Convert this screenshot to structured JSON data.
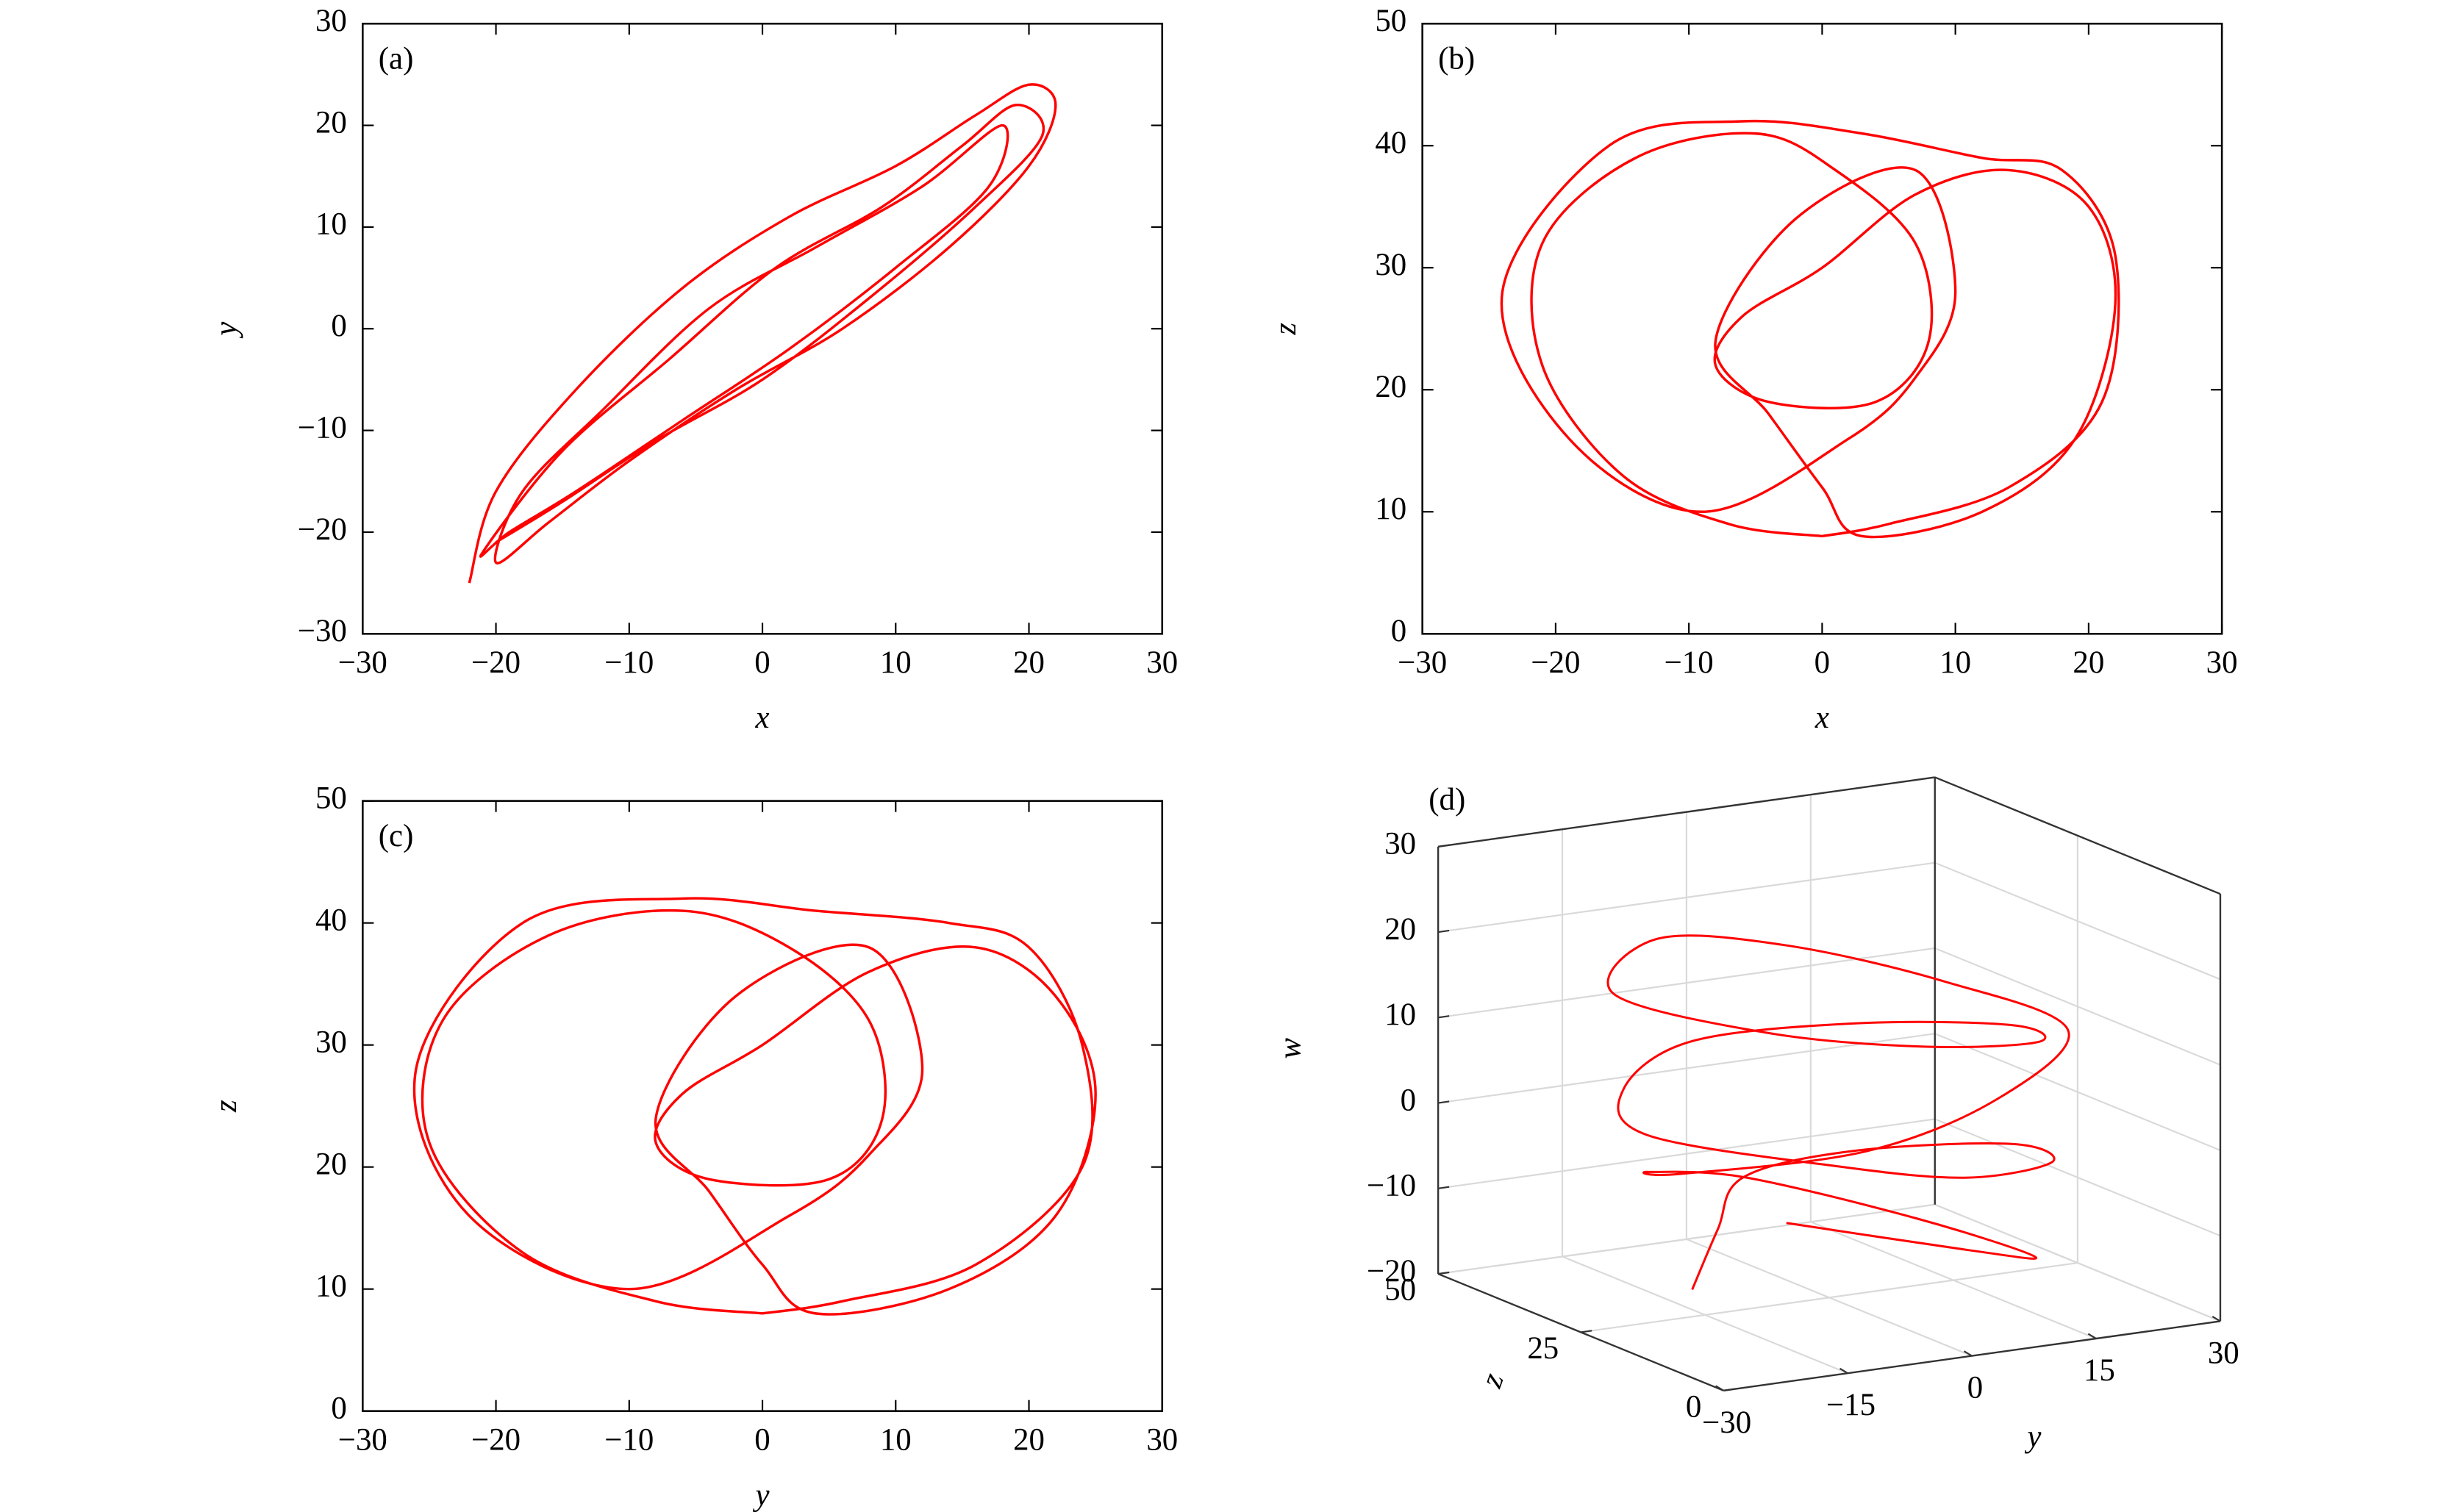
{
  "chart_data": [
    {
      "type": "line",
      "label": "(a)",
      "xlabel": "x",
      "ylabel": "y",
      "xlim": [
        -30,
        30
      ],
      "ylim": [
        -30,
        30
      ],
      "xticks": [
        {
          "value": -30,
          "label": "−30"
        },
        {
          "value": -20,
          "label": "−20"
        },
        {
          "value": -10,
          "label": "−10"
        },
        0,
        10,
        20,
        30
      ],
      "yticks": [
        {
          "value": -30,
          "label": "−30"
        },
        {
          "value": -20,
          "label": "−20"
        },
        {
          "value": -10,
          "label": "−10"
        },
        0,
        10,
        20,
        30
      ],
      "series": [
        {
          "color": "#ff0000",
          "x": [
            -22,
            -20,
            -14,
            -6,
            2,
            10,
            16,
            20,
            22,
            20,
            14,
            6,
            -2,
            -10,
            -16,
            -20,
            -18,
            -12,
            -4,
            4,
            12,
            18,
            17,
            10,
            2,
            -6,
            -14,
            -19,
            -21,
            -15,
            -7,
            1,
            9,
            15,
            19,
            21,
            16,
            8,
            0,
            -8,
            -15,
            -20
          ],
          "values": [
            -25,
            -16,
            -6,
            4,
            11,
            16,
            21,
            24,
            22,
            16,
            8,
            0,
            -6,
            -13,
            -19,
            -23,
            -16,
            -8,
            2,
            8,
            14,
            20,
            14,
            6,
            -2,
            -9,
            -16,
            -20,
            -22,
            -12,
            -3,
            6,
            12,
            18,
            22,
            19,
            12,
            3,
            -5,
            -11,
            -17,
            -21
          ]
        }
      ]
    },
    {
      "type": "line",
      "label": "(b)",
      "xlabel": "x",
      "ylabel": "z",
      "xlim": [
        -30,
        30
      ],
      "ylim": [
        0,
        50
      ],
      "xticks": [
        {
          "value": -30,
          "label": "−30"
        },
        {
          "value": -20,
          "label": "−20"
        },
        {
          "value": -10,
          "label": "−10"
        },
        0,
        10,
        20,
        30
      ],
      "yticks": [
        0,
        10,
        20,
        30,
        40,
        50
      ],
      "series": [
        {
          "color": "#ff0000",
          "x": [
            0,
            -7,
            -15,
            -21,
            -21,
            -14,
            -5,
            1,
            7,
            8,
            4,
            -4,
            -8,
            -6,
            0,
            7,
            14,
            20,
            22,
            19,
            12,
            3,
            0,
            -4,
            -8,
            -2,
            7,
            10,
            7,
            2,
            -9,
            -19,
            -24,
            -16,
            -6,
            3,
            12,
            18,
            22,
            21,
            14,
            5,
            0
          ],
          "values": [
            8,
            9,
            13,
            22,
            32,
            39,
            41,
            38,
            32,
            24,
            19,
            19,
            22,
            26,
            30,
            36,
            38,
            35,
            27,
            16,
            10,
            8,
            12,
            18,
            24,
            34,
            38,
            28,
            21,
            16,
            10,
            16,
            28,
            40,
            42,
            41,
            39,
            38,
            31,
            19,
            12,
            9,
            8
          ]
        }
      ]
    },
    {
      "type": "line",
      "label": "(c)",
      "xlabel": "y",
      "ylabel": "z",
      "xlim": [
        -30,
        30
      ],
      "ylim": [
        0,
        50
      ],
      "xticks": [
        {
          "value": -30,
          "label": "−30"
        },
        {
          "value": -20,
          "label": "−20"
        },
        {
          "value": -10,
          "label": "−10"
        },
        0,
        10,
        20,
        30
      ],
      "yticks": [
        0,
        10,
        20,
        30,
        40,
        50
      ],
      "series": [
        {
          "color": "#ff0000",
          "x": [
            0,
            -8,
            -18,
            -25,
            -24,
            -16,
            -6,
            2,
            8,
            9,
            5,
            -4,
            -8,
            -6,
            0,
            8,
            16,
            22,
            25,
            22,
            14,
            4,
            0,
            -4,
            -8,
            -2,
            8,
            12,
            8,
            2,
            -10,
            -22,
            -26,
            -18,
            -6,
            4,
            14,
            20,
            24,
            24,
            16,
            6,
            0
          ],
          "values": [
            8,
            9,
            13,
            22,
            32,
            39,
            41,
            38,
            32,
            24,
            19,
            19,
            22,
            26,
            30,
            36,
            38,
            34,
            26,
            16,
            10,
            8,
            12,
            18,
            24,
            34,
            38,
            28,
            21,
            16,
            10,
            16,
            28,
            40,
            42,
            41,
            40,
            38,
            30,
            20,
            12,
            9,
            8
          ]
        }
      ]
    },
    {
      "type": "line3d",
      "label": "(d)",
      "xlabel": "y",
      "ylabel": "z",
      "zlabel": "w",
      "xlim": [
        -30,
        30
      ],
      "ylim": [
        0,
        50
      ],
      "zlim": [
        -20,
        30
      ],
      "xticks": [
        {
          "value": -30,
          "label": "−30"
        },
        {
          "value": -15,
          "label": "−15"
        },
        0,
        15,
        30
      ],
      "yticks": [
        0,
        25,
        50
      ],
      "zticks": [
        {
          "value": -20,
          "label": "−20"
        },
        {
          "value": -10,
          "label": "−10"
        },
        0,
        10,
        20,
        30
      ],
      "series": [
        {
          "color": "#ff0000",
          "x": [
            -20,
            -10,
            0,
            12,
            22,
            18,
            5,
            -8,
            -22,
            -18,
            -5,
            10,
            20,
            15,
            0,
            -15,
            -24,
            -12,
            2,
            16,
            24,
            10,
            -6,
            -20,
            -15,
            0,
            14,
            20,
            8,
            -10
          ],
          "y": [
            20,
            30,
            40,
            38,
            25,
            12,
            8,
            12,
            25,
            35,
            42,
            35,
            22,
            10,
            8,
            14,
            28,
            38,
            36,
            28,
            18,
            10,
            10,
            22,
            35,
            40,
            30,
            18,
            12,
            18
          ],
          "values": [
            -15,
            -12,
            -10,
            -8,
            -5,
            -3,
            -2,
            0,
            2,
            4,
            6,
            8,
            10,
            12,
            14,
            16,
            18,
            20,
            18,
            14,
            10,
            6,
            2,
            -2,
            -6,
            -10,
            -14,
            -16,
            -12,
            -8
          ]
        }
      ]
    }
  ]
}
